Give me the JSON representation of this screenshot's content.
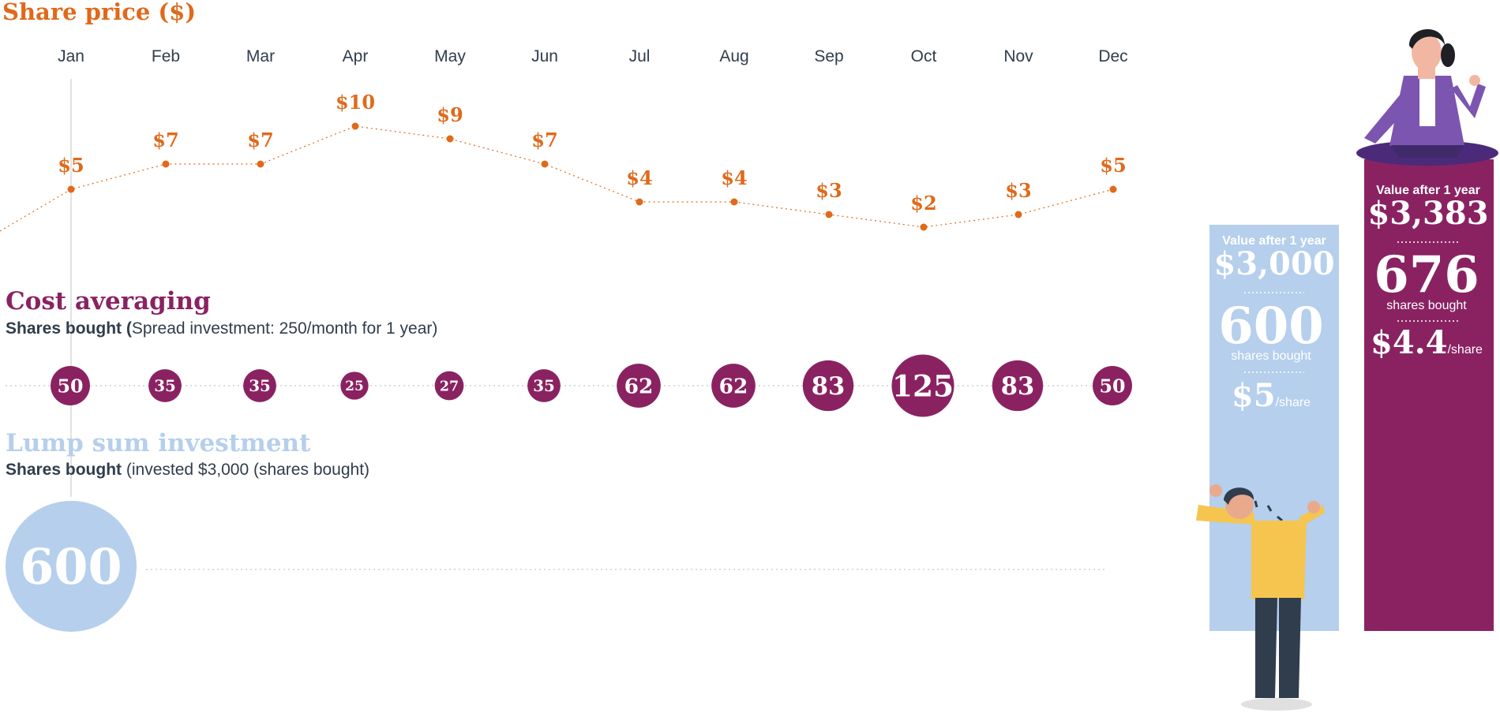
{
  "colors": {
    "price": "#e0691a",
    "cost_avg": "#8a2262",
    "lump_sum": "#b5cfec",
    "text_dark": "#2f3d4c",
    "divider": "#cccccc"
  },
  "chart_data": [
    {
      "type": "line",
      "title": "Share price ($)",
      "categories": [
        "Jan",
        "Feb",
        "Mar",
        "Apr",
        "May",
        "Jun",
        "Jul",
        "Aug",
        "Sep",
        "Oct",
        "Nov",
        "Dec"
      ],
      "values": [
        5,
        7,
        7,
        10,
        9,
        7,
        4,
        4,
        3,
        2,
        3,
        5
      ],
      "value_labels": [
        "$5",
        "$7",
        "$7",
        "$10",
        "$9",
        "$7",
        "$4",
        "$4",
        "$3",
        "$2",
        "$3",
        "$5"
      ]
    },
    {
      "type": "scatter",
      "title": "Cost averaging",
      "subtitle_bold": "Shares bought (",
      "subtitle": "Spread investment: 250/month for 1 year)",
      "categories": [
        "Jan",
        "Feb",
        "Mar",
        "Apr",
        "May",
        "Jun",
        "Jul",
        "Aug",
        "Sep",
        "Oct",
        "Nov",
        "Dec"
      ],
      "values": [
        50,
        35,
        35,
        25,
        27,
        35,
        62,
        62,
        83,
        125,
        83,
        50
      ]
    },
    {
      "type": "scatter",
      "title": "Lump sum investment",
      "subtitle_bold": "Shares bought",
      "subtitle": " (invested $3,000 (shares bought)",
      "categories": [
        "Jan"
      ],
      "values": [
        600
      ]
    }
  ],
  "panels": {
    "lump": {
      "value_label": "Value after 1 year",
      "value": "$3,000",
      "shares": "600",
      "shares_label": "shares bought",
      "price": "$5",
      "price_unit": "/share"
    },
    "cost": {
      "value_label": "Value after 1 year",
      "value": "$3,383",
      "shares": "676",
      "shares_label": "shares bought",
      "price": "$4.4",
      "price_unit": "/share"
    }
  }
}
